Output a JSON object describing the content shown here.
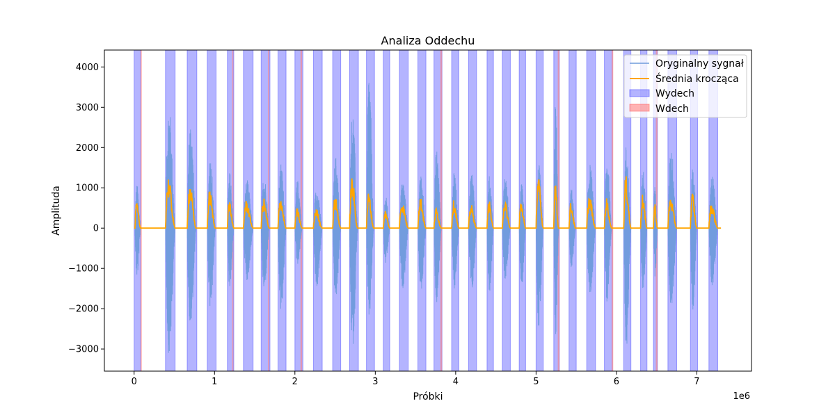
{
  "chart_data": {
    "type": "line",
    "title": "Analiza Oddechu",
    "xlabel": "Próbki",
    "ylabel": "Amplituda",
    "x_offset_label": "1e6",
    "xlim": [
      -0.37,
      7.68
    ],
    "ylim": [
      -3550,
      4420
    ],
    "x_ticks": [
      0,
      1,
      2,
      3,
      4,
      5,
      6,
      7
    ],
    "y_ticks": [
      -3000,
      -2000,
      -1000,
      0,
      1000,
      2000,
      3000,
      4000
    ],
    "grid": false,
    "legend_position": "top-right",
    "colors": {
      "original": "#6f9bdc",
      "rolling": "#ffa500",
      "exhale": "#4d4dff",
      "inhale": "#ff8080"
    },
    "series": [
      {
        "name": "Oryginalny sygnał",
        "kind": "line"
      },
      {
        "name": "Średnia krocząca",
        "kind": "line"
      },
      {
        "name": "Wydech",
        "kind": "span"
      },
      {
        "name": "Wdech",
        "kind": "span"
      }
    ],
    "breaths": [
      {
        "start": 0.01,
        "end": 0.08,
        "amp_pos": 1100,
        "amp_neg": 1250,
        "avg": 650
      },
      {
        "start": 0.39,
        "end": 0.51,
        "amp_pos": 3100,
        "amp_neg": 3200,
        "avg": 1300
      },
      {
        "start": 0.66,
        "end": 0.77,
        "amp_pos": 2700,
        "amp_neg": 2500,
        "avg": 1150
      },
      {
        "start": 0.91,
        "end": 1.01,
        "amp_pos": 1800,
        "amp_neg": 2050,
        "avg": 950
      },
      {
        "start": 1.16,
        "end": 1.24,
        "amp_pos": 1400,
        "amp_neg": 1600,
        "avg": 700
      },
      {
        "start": 1.36,
        "end": 1.48,
        "amp_pos": 1200,
        "amp_neg": 1300,
        "avg": 700
      },
      {
        "start": 1.58,
        "end": 1.68,
        "amp_pos": 1350,
        "amp_neg": 1600,
        "avg": 750
      },
      {
        "start": 1.79,
        "end": 1.89,
        "amp_pos": 1600,
        "amp_neg": 2150,
        "avg": 800
      },
      {
        "start": 2.0,
        "end": 2.09,
        "amp_pos": 1200,
        "amp_neg": 900,
        "avg": 500
      },
      {
        "start": 2.23,
        "end": 2.34,
        "amp_pos": 1000,
        "amp_neg": 1500,
        "avg": 500
      },
      {
        "start": 2.47,
        "end": 2.57,
        "amp_pos": 1800,
        "amp_neg": 1800,
        "avg": 800
      },
      {
        "start": 2.68,
        "end": 2.78,
        "amp_pos": 3000,
        "amp_neg": 3000,
        "avg": 1300
      },
      {
        "start": 2.89,
        "end": 2.98,
        "amp_pos": 4000,
        "amp_neg": 2300,
        "avg": 900
      },
      {
        "start": 3.1,
        "end": 3.18,
        "amp_pos": 800,
        "amp_neg": 900,
        "avg": 450
      },
      {
        "start": 3.3,
        "end": 3.41,
        "amp_pos": 1200,
        "amp_neg": 1500,
        "avg": 700
      },
      {
        "start": 3.53,
        "end": 3.63,
        "amp_pos": 1300,
        "amp_neg": 1600,
        "avg": 800
      },
      {
        "start": 3.73,
        "end": 3.82,
        "amp_pos": 2000,
        "amp_neg": 1900,
        "avg": 500
      },
      {
        "start": 3.95,
        "end": 4.04,
        "amp_pos": 1400,
        "amp_neg": 1500,
        "avg": 700
      },
      {
        "start": 4.16,
        "end": 4.26,
        "amp_pos": 1400,
        "amp_neg": 1700,
        "avg": 600
      },
      {
        "start": 4.39,
        "end": 4.47,
        "amp_pos": 1300,
        "amp_neg": 1600,
        "avg": 700
      },
      {
        "start": 4.58,
        "end": 4.68,
        "amp_pos": 1300,
        "amp_neg": 1300,
        "avg": 700
      },
      {
        "start": 4.79,
        "end": 4.87,
        "amp_pos": 1100,
        "amp_neg": 1500,
        "avg": 700
      },
      {
        "start": 5.0,
        "end": 5.09,
        "amp_pos": 1600,
        "amp_neg": 2500,
        "avg": 1300
      },
      {
        "start": 5.22,
        "end": 5.28,
        "amp_pos": 3200,
        "amp_neg": 2800,
        "avg": 1250
      },
      {
        "start": 5.41,
        "end": 5.49,
        "amp_pos": 1000,
        "amp_neg": 1000,
        "avg": 650
      },
      {
        "start": 5.63,
        "end": 5.74,
        "amp_pos": 1600,
        "amp_neg": 1700,
        "avg": 850
      },
      {
        "start": 5.85,
        "end": 5.94,
        "amp_pos": 1800,
        "amp_neg": 1900,
        "avg": 750
      },
      {
        "start": 6.09,
        "end": 6.18,
        "amp_pos": 2100,
        "amp_neg": 2950,
        "avg": 1300
      },
      {
        "start": 6.3,
        "end": 6.38,
        "amp_pos": 1500,
        "amp_neg": 1600,
        "avg": 850
      },
      {
        "start": 6.46,
        "end": 6.51,
        "amp_pos": 1100,
        "amp_neg": 1200,
        "avg": 650
      },
      {
        "start": 6.64,
        "end": 6.75,
        "amp_pos": 2050,
        "amp_neg": 2000,
        "avg": 800
      },
      {
        "start": 6.92,
        "end": 7.0,
        "amp_pos": 1600,
        "amp_neg": 2100,
        "avg": 900
      },
      {
        "start": 7.15,
        "end": 7.26,
        "amp_pos": 1350,
        "amp_neg": 1450,
        "avg": 650
      }
    ],
    "exhale_spans": [
      [
        0.0,
        0.08
      ],
      [
        0.39,
        0.51
      ],
      [
        0.66,
        0.78
      ],
      [
        0.91,
        1.02
      ],
      [
        1.16,
        1.24
      ],
      [
        1.36,
        1.48
      ],
      [
        1.58,
        1.69
      ],
      [
        1.79,
        1.89
      ],
      [
        2.0,
        2.1
      ],
      [
        2.23,
        2.34
      ],
      [
        2.47,
        2.57
      ],
      [
        2.68,
        2.79
      ],
      [
        2.89,
        2.99
      ],
      [
        3.1,
        3.18
      ],
      [
        3.3,
        3.41
      ],
      [
        3.53,
        3.63
      ],
      [
        3.73,
        3.83
      ],
      [
        3.95,
        4.04
      ],
      [
        4.16,
        4.26
      ],
      [
        4.39,
        4.47
      ],
      [
        4.58,
        4.68
      ],
      [
        4.79,
        4.87
      ],
      [
        5.0,
        5.09
      ],
      [
        5.22,
        5.29
      ],
      [
        5.41,
        5.5
      ],
      [
        5.63,
        5.74
      ],
      [
        5.85,
        5.95
      ],
      [
        6.09,
        6.18
      ],
      [
        6.3,
        6.38
      ],
      [
        6.46,
        6.51
      ],
      [
        6.64,
        6.75
      ],
      [
        6.92,
        7.01
      ],
      [
        7.15,
        7.26
      ]
    ],
    "inhale_spans": [
      [
        0.08,
        0.095
      ],
      [
        1.22,
        1.235
      ],
      [
        1.665,
        1.68
      ],
      [
        2.07,
        2.09
      ],
      [
        3.81,
        3.83
      ],
      [
        5.27,
        5.29
      ],
      [
        5.94,
        5.96
      ],
      [
        6.49,
        6.51
      ]
    ],
    "x_end": 7.3
  }
}
